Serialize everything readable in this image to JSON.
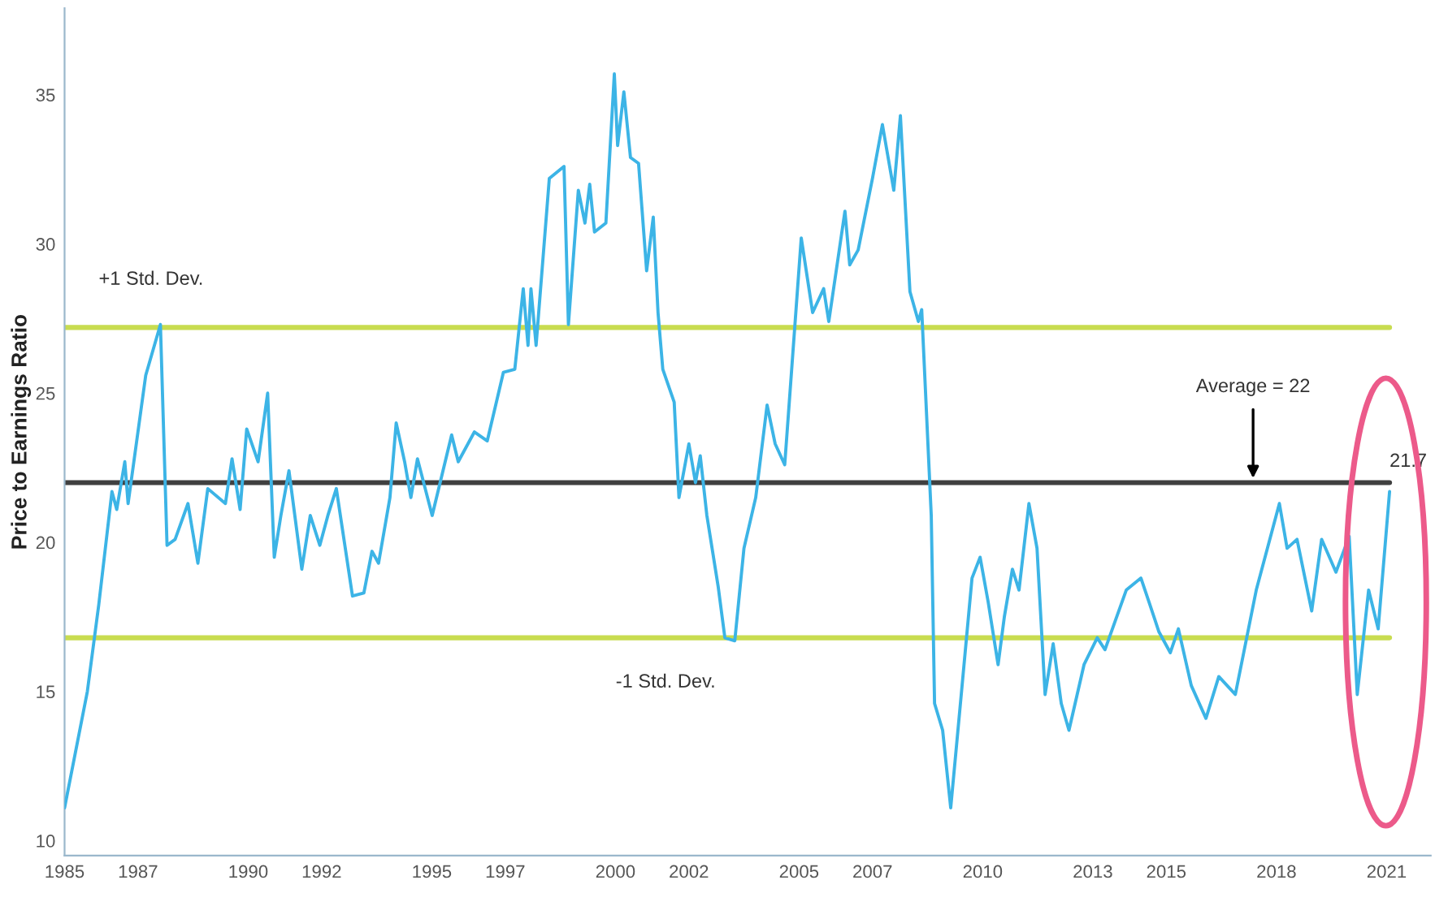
{
  "chart_data": {
    "type": "line",
    "ylabel": "Price to Earnings Ratio",
    "x": [
      1985.0,
      1985.62,
      1985.93,
      1986.29,
      1986.42,
      1986.64,
      1986.73,
      1987.21,
      1987.61,
      1987.79,
      1988.01,
      1988.36,
      1988.63,
      1988.9,
      1989.38,
      1989.56,
      1989.78,
      1989.96,
      1990.27,
      1990.53,
      1990.71,
      1990.89,
      1991.11,
      1991.46,
      1991.69,
      1991.95,
      1992.17,
      1992.4,
      1992.84,
      1993.15,
      1993.37,
      1993.55,
      1993.86,
      1994.03,
      1994.26,
      1994.43,
      1994.61,
      1995.01,
      1995.54,
      1995.72,
      1996.16,
      1996.51,
      1996.95,
      1997.26,
      1997.49,
      1997.62,
      1997.7,
      1997.84,
      1998.2,
      1998.6,
      1998.72,
      1998.99,
      1999.17,
      1999.3,
      1999.43,
      1999.74,
      1999.97,
      2000.06,
      2000.23,
      2000.41,
      2000.63,
      2000.85,
      2001.03,
      2001.16,
      2001.29,
      2001.6,
      2001.73,
      2002.0,
      2002.18,
      2002.31,
      2002.49,
      2002.8,
      2002.98,
      2003.25,
      2003.5,
      2003.82,
      2004.13,
      2004.35,
      2004.61,
      2005.06,
      2005.37,
      2005.67,
      2005.81,
      2006.25,
      2006.38,
      2006.61,
      2007.0,
      2007.27,
      2007.58,
      2007.76,
      2008.02,
      2008.25,
      2008.34,
      2008.6,
      2008.69,
      2008.91,
      2009.13,
      2009.44,
      2009.71,
      2009.93,
      2010.15,
      2010.42,
      2010.59,
      2010.81,
      2010.99,
      2011.26,
      2011.48,
      2011.7,
      2011.92,
      2012.14,
      2012.35,
      2012.76,
      2013.12,
      2013.33,
      2013.91,
      2014.31,
      2014.53,
      2014.8,
      2015.11,
      2015.33,
      2015.68,
      2016.08,
      2016.43,
      2016.88,
      2017.45,
      2018.08,
      2018.29,
      2018.56,
      2018.96,
      2019.23,
      2019.62,
      2019.98,
      2020.2,
      2020.51,
      2020.77,
      2021.08
    ],
    "series": [
      {
        "color": "#3cb4e6",
        "values": [
          11.1,
          15.0,
          17.9,
          21.7,
          21.1,
          22.7,
          21.3,
          25.6,
          27.3,
          19.9,
          20.1,
          21.3,
          19.3,
          21.8,
          21.3,
          22.8,
          21.1,
          23.8,
          22.7,
          25.0,
          19.5,
          20.9,
          22.4,
          19.1,
          20.9,
          19.9,
          20.9,
          21.8,
          18.2,
          18.3,
          19.7,
          19.3,
          21.5,
          24.0,
          22.7,
          21.5,
          22.8,
          20.9,
          23.6,
          22.7,
          23.7,
          23.4,
          25.7,
          25.8,
          28.5,
          26.6,
          28.5,
          26.6,
          32.2,
          32.6,
          27.3,
          31.8,
          30.7,
          32.0,
          30.4,
          30.7,
          35.7,
          33.3,
          35.1,
          32.9,
          32.7,
          29.1,
          30.9,
          27.7,
          25.8,
          24.7,
          21.5,
          23.3,
          22.0,
          22.9,
          20.9,
          18.5,
          16.8,
          16.7,
          19.8,
          21.5,
          24.6,
          23.3,
          22.6,
          30.2,
          27.7,
          28.5,
          27.4,
          31.1,
          29.3,
          29.8,
          32.2,
          34.0,
          31.8,
          34.3,
          28.4,
          27.4,
          27.8,
          20.9,
          14.6,
          13.7,
          11.1,
          15.2,
          18.8,
          19.5,
          18.0,
          15.9,
          17.5,
          19.1,
          18.4,
          21.3,
          19.8,
          14.9,
          16.6,
          14.6,
          13.7,
          15.9,
          16.8,
          16.4,
          18.4,
          18.8,
          18.0,
          17.0,
          16.3,
          17.1,
          15.2,
          14.1,
          15.5,
          14.9,
          18.4,
          21.3,
          19.8,
          20.1,
          17.7,
          20.1,
          19.0,
          20.2,
          14.9,
          18.4,
          17.1,
          21.7
        ]
      }
    ],
    "xlim": [
      1985,
      2022.2
    ],
    "xticks": [
      1985,
      1987,
      1990,
      1992,
      1995,
      1997,
      2000,
      2002,
      2005,
      2007,
      2010,
      2013,
      2015,
      2018,
      2021
    ],
    "ylim": [
      9.5,
      37.9
    ],
    "yticks": [
      10,
      15,
      20,
      25,
      30,
      35
    ],
    "ref_lines": [
      {
        "axis": "y",
        "value": 27.2,
        "label": "+1 Std. Dev.",
        "color": "#c8dc50"
      },
      {
        "axis": "y",
        "value": 22,
        "label": "Average = 22",
        "color": "#404040"
      },
      {
        "axis": "y",
        "value": 16.8,
        "label": "-1 Std. Dev.",
        "color": "#c8dc50"
      }
    ],
    "annotations": [
      {
        "text": "21.7",
        "x": 2021.08,
        "y": 21.7
      }
    ],
    "grid": false,
    "legend": false,
    "line_style": "solid",
    "marker": "none"
  }
}
